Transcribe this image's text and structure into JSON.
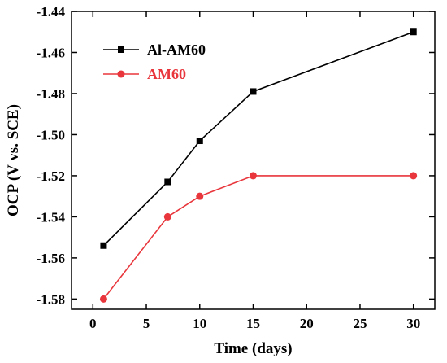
{
  "chart_data": {
    "type": "line",
    "xlabel": "Time (days)",
    "ylabel": "OCP (V vs. SCE)",
    "xlim": [
      -2,
      32
    ],
    "ylim": [
      -1.585,
      -1.44
    ],
    "x_ticks": [
      0,
      5,
      10,
      15,
      20,
      25,
      30
    ],
    "y_ticks": [
      -1.58,
      -1.56,
      -1.54,
      -1.52,
      -1.5,
      -1.48,
      -1.46,
      -1.44
    ],
    "x_tick_labels": [
      "0",
      "5",
      "10",
      "15",
      "20",
      "25",
      "30"
    ],
    "y_tick_labels": [
      "-1.58",
      "-1.56",
      "-1.54",
      "-1.52",
      "-1.50",
      "-1.48",
      "-1.46",
      "-1.44"
    ],
    "grid": false,
    "legend_position": "top-left",
    "series": [
      {
        "name": "Al-AM60",
        "color": "#000000",
        "marker": "square",
        "x": [
          1,
          7,
          10,
          15,
          30
        ],
        "y": [
          -1.554,
          -1.523,
          -1.503,
          -1.479,
          -1.45
        ]
      },
      {
        "name": "AM60",
        "color": "#e8363c",
        "marker": "circle",
        "x": [
          1,
          7,
          10,
          15,
          30
        ],
        "y": [
          -1.58,
          -1.54,
          -1.53,
          -1.52,
          -1.52
        ]
      }
    ]
  }
}
